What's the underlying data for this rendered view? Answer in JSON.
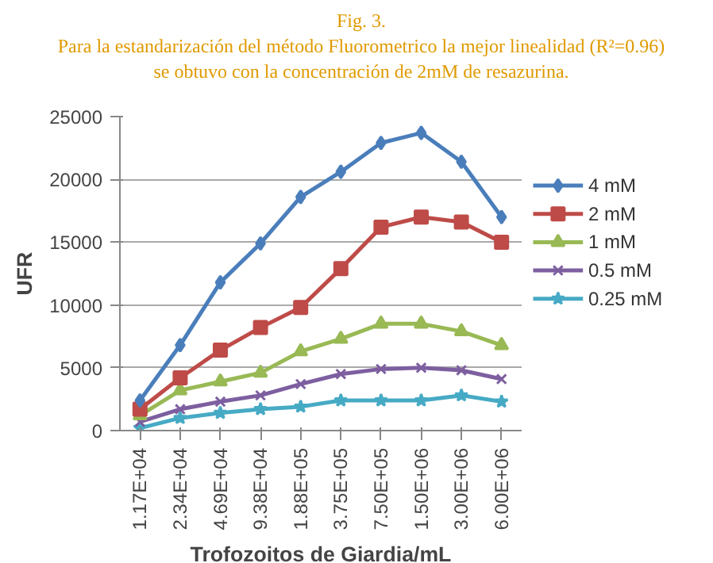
{
  "chart_data": {
    "type": "line",
    "title": "Fig. 3.",
    "subtitle": "Para la estandarización del método Fluorometrico la mejor linealidad (R²=0.96)\nse obtuvo con la concentración de 2mM de resazurina.",
    "xlabel": "Trofozoitos de Giardia/mL",
    "ylabel": "UFR",
    "categories": [
      "1.17E+04",
      "2.34E+04",
      "4.69E+04",
      "9.38E+04",
      "1.88E+05",
      "3.75E+05",
      "7.50E+05",
      "1.50E+06",
      "3.00E+06",
      "6.00E+06"
    ],
    "ylim": [
      0,
      25000
    ],
    "yticks": [
      0,
      5000,
      10000,
      15000,
      20000,
      25000
    ],
    "grid": "y",
    "legend": "right",
    "series": [
      {
        "name": "4 mM",
        "color": "#4a7ebb",
        "marker": "diamond",
        "values": [
          2400,
          6800,
          11800,
          14900,
          18600,
          20600,
          22900,
          23700,
          21400,
          17000
        ]
      },
      {
        "name": "2 mM",
        "color": "#be4b48",
        "marker": "square",
        "values": [
          1700,
          4200,
          6400,
          8200,
          9800,
          12900,
          16200,
          17000,
          16600,
          15000
        ]
      },
      {
        "name": "1 mM",
        "color": "#98b954",
        "marker": "triangle",
        "values": [
          1200,
          3200,
          3900,
          4600,
          6300,
          7300,
          8500,
          8500,
          7900,
          6800
        ]
      },
      {
        "name": "0.5 mM",
        "color": "#7d5fa0",
        "marker": "cross",
        "values": [
          700,
          1700,
          2300,
          2800,
          3700,
          4500,
          4900,
          5000,
          4800,
          4100
        ]
      },
      {
        "name": "0.25 mM",
        "color": "#46aac5",
        "marker": "star",
        "values": [
          200,
          1000,
          1400,
          1700,
          1900,
          2400,
          2400,
          2400,
          2800,
          2300
        ]
      }
    ]
  }
}
